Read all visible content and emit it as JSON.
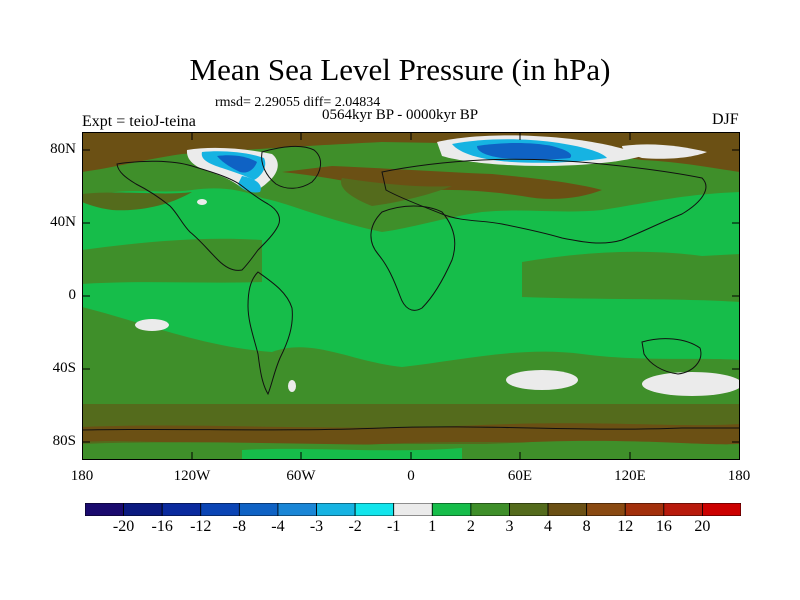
{
  "title": "Mean Sea Level Pressure (in hPa)",
  "stats": "rmsd= 2.29055  diff= 2.04834",
  "period": "0564kyr BP - 0000kyr BP",
  "experiment": "Expt = teioJ-teina",
  "season": "DJF",
  "latitude_ticks": [
    "80N",
    "40N",
    "0",
    "40S",
    "80S"
  ],
  "longitude_ticks": [
    "180",
    "120W",
    "60W",
    "0",
    "60E",
    "120E",
    "180"
  ],
  "legend": {
    "labels": [
      "-20",
      "-16",
      "-12",
      "-8",
      "-4",
      "-3",
      "-2",
      "-1",
      "1",
      "2",
      "3",
      "4",
      "8",
      "12",
      "16",
      "20"
    ],
    "colors": [
      "#1a0a6e",
      "#0b1a80",
      "#0a2a9e",
      "#0b45b5",
      "#0f62c4",
      "#1a86d6",
      "#16b3e2",
      "#12e5ec",
      "#ebebeb",
      "#16bd4a",
      "#3f8f2a",
      "#546b1c",
      "#6b5014",
      "#8a4a12",
      "#a3300c",
      "#b81a0c",
      "#cc0000"
    ]
  }
}
